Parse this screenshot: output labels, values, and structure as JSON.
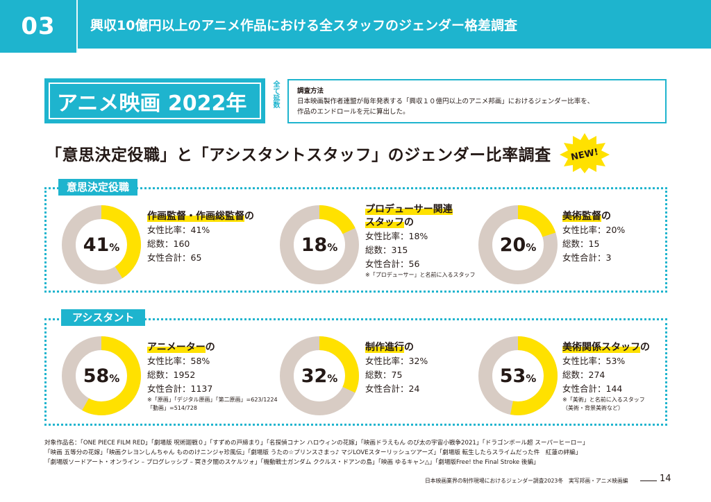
{
  "header": {
    "section_number": "03",
    "title": "興収10億円以上のアニメ作品における全スタッフのジェンダー格差調査"
  },
  "title_box": {
    "title": "アニメ映画 2022年",
    "side_note": "全て延数"
  },
  "method": {
    "heading": "調査方法",
    "line1": "日本映画製作者連盟が毎年発表する「興収１０億円以上のアニメ邦画」におけるジェンダー比率を、",
    "line2": "作品のエンドロールを元に算出した。"
  },
  "main_heading": "「意思決定役職」と「アシスタントスタッフ」のジェンダー比率調査",
  "new_badge": "NEW!",
  "colors": {
    "accent": "#1eb4ce",
    "female": "#ffe100",
    "rest": "#d8ccc4"
  },
  "decision": {
    "label": "意思決定役職",
    "items": [
      {
        "pct": "41",
        "ratio": 0.41,
        "cat1": "作画監督・作画総監督",
        "cat_suffix": "の",
        "cat2": "",
        "rate": "女性比率：41%",
        "total": "総数：160",
        "female": "女性合計：65",
        "note1": "",
        "note2": ""
      },
      {
        "pct": "18",
        "ratio": 0.18,
        "cat1": "プロデューサー関連",
        "cat_suffix": "の",
        "cat2": "スタッフ",
        "rate": "女性比率：18%",
        "total": "総数：315",
        "female": "女性合計：56",
        "note1": "※「プロデューサー」と名前に入るスタッフ",
        "note2": ""
      },
      {
        "pct": "20",
        "ratio": 0.2,
        "cat1": "美術監督",
        "cat_suffix": "の",
        "cat2": "",
        "rate": "女性比率：20%",
        "total": "総数：15",
        "female": "女性合計：3",
        "note1": "",
        "note2": ""
      }
    ]
  },
  "assistant": {
    "label": "アシスタント",
    "items": [
      {
        "pct": "58",
        "ratio": 0.58,
        "cat1": "アニメーター",
        "cat_suffix": "の",
        "cat2": "",
        "rate": "女性比率：58%",
        "total": "総数：1952",
        "female": "女性合計：1137",
        "note1": "※「原画」「デジタル原画」「第二原画」=623/1224",
        "note2": "「動画」=514/728"
      },
      {
        "pct": "32",
        "ratio": 0.32,
        "cat1": "制作進行",
        "cat_suffix": "の",
        "cat2": "",
        "rate": "女性比率：32%",
        "total": "総数：75",
        "female": "女性合計：24",
        "note1": "",
        "note2": ""
      },
      {
        "pct": "53",
        "ratio": 0.53,
        "cat1": "美術関係スタッフ",
        "cat_suffix": "の",
        "cat2": "",
        "rate": "女性比率：53%",
        "total": "総数：274",
        "female": "女性合計：144",
        "note1": "※「美術」と名前に入るスタッフ",
        "note2": "（美術・背景美術など）"
      }
    ]
  },
  "films": {
    "line1": "対象作品名：「ONE PIECE FILM RED」「劇場版 呪術廻戦０」「すずめの戸締まり」「名探偵コナン ハロウィンの花嫁」「映画ドラえもん のび太の宇宙小戦争2021」「ドラゴンボール超 スーパーヒーロー」",
    "line2": "「映画 五等分の花嫁」「映画クレヨンしんちゃん もののけニンジャ珍風伝」「劇場版 うたの☆プリンスさまっ♪ マジLOVEスターリッシュツアーズ」「劇場版 転生したらスライムだった件　紅蓮の絆編」",
    "line3": "「劇場版ソードアート・オンライン – プログレッシブ – 冥き夕闇のスケルツォ」「機動戦士ガンダム ククルス・ドアンの島」「映画 ゆるキャン△」「劇場版Free! the Final Stroke 後編」"
  },
  "footer": {
    "text": "日本映画業界の制作現場におけるジェンダー調査2023冬　実写邦画・アニメ映画編",
    "page": "14"
  }
}
